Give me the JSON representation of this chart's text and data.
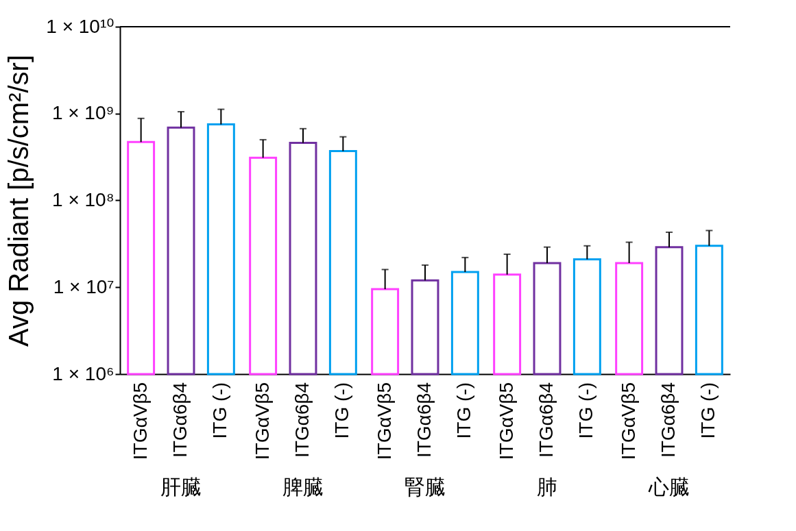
{
  "chart_data": {
    "type": "bar",
    "ylabel": "Avg Radiant [p/s/cm²/sr]",
    "log": true,
    "categories": [
      "肝臓",
      "脾臓",
      "腎臓",
      "肺",
      "心臓"
    ],
    "series": [
      {
        "name": "ITGαVβ5",
        "color": "#ff40ff",
        "values": [
          470000000.0,
          310000000.0,
          9500000.0,
          14000000.0,
          19000000.0
        ],
        "errors": [
          [
            470000000.0,
            880000000.0
          ],
          [
            310000000.0,
            500000000.0
          ],
          [
            9500000.0,
            16000000.0
          ],
          [
            14000000.0,
            24000000.0
          ],
          [
            19000000.0,
            33000000.0
          ]
        ]
      },
      {
        "name": "ITGα6β4",
        "color": "#7030a0",
        "values": [
          690000000.0,
          460000000.0,
          12000000.0,
          19000000.0,
          29000000.0
        ],
        "errors": [
          [
            690000000.0,
            1050000000.0
          ],
          [
            460000000.0,
            670000000.0
          ],
          [
            12000000.0,
            18000000.0
          ],
          [
            19000000.0,
            29000000.0
          ],
          [
            29000000.0,
            43000000.0
          ]
        ]
      },
      {
        "name": "ITG (-)",
        "color": "#00a0f0",
        "values": [
          750000000.0,
          370000000.0,
          15000000.0,
          21000000.0,
          30000000.0
        ],
        "errors": [
          [
            750000000.0,
            1120000000.0
          ],
          [
            370000000.0,
            540000000.0
          ],
          [
            15000000.0,
            22000000.0
          ],
          [
            21000000.0,
            30000000.0
          ],
          [
            30000000.0,
            45000000.0
          ]
        ]
      }
    ],
    "ylim": [
      1000000.0,
      10000000000.0
    ],
    "yticks": [
      {
        "value": 1000000.0,
        "label": "1 × 10⁶"
      },
      {
        "value": 10000000.0,
        "label": "1 × 10⁷"
      },
      {
        "value": 100000000.0,
        "label": "1 × 10⁸"
      },
      {
        "value": 1000000000.0,
        "label": "1 × 10⁹"
      },
      {
        "value": 10000000000.0,
        "label": "1 × 10¹⁰"
      }
    ],
    "grid": false
  }
}
